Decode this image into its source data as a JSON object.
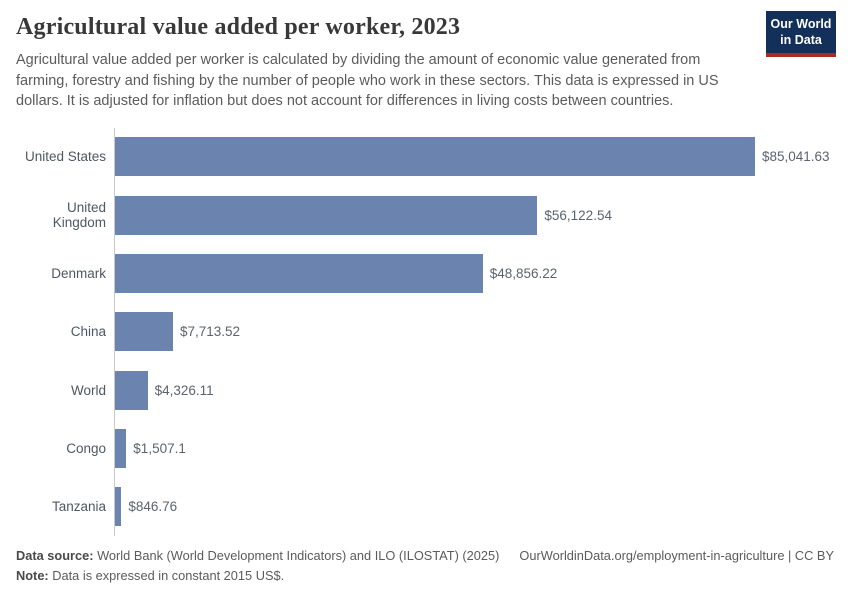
{
  "header": {
    "title": "Agricultural value added per worker, 2023",
    "subtitle": "Agricultural value added per worker is calculated by dividing the amount of economic value generated from farming, forestry and fishing by the number of people who work in these sectors. This data is expressed in US dollars. It is adjusted for inflation but does not account for differences in living costs between countries.",
    "logo": {
      "line1": "Our World",
      "line2": "in Data"
    }
  },
  "chart_data": {
    "type": "bar",
    "orientation": "horizontal",
    "title": "Agricultural value added per worker, 2023",
    "categories": [
      "United States",
      "United Kingdom",
      "Denmark",
      "China",
      "World",
      "Congo",
      "Tanzania"
    ],
    "values": [
      85041.63,
      56122.54,
      48856.22,
      7713.52,
      4326.11,
      1507.1,
      846.76
    ],
    "value_labels": [
      "$85,041.63",
      "$56,122.54",
      "$48,856.22",
      "$7,713.52",
      "$4,326.11",
      "$1,507.1",
      "$846.76"
    ],
    "xlim": [
      0,
      85041.63
    ],
    "bar_color": "#6b84af",
    "axis_line_color": "#c9c9c9",
    "grid": false,
    "legend": "none",
    "unit": "constant 2015 US$"
  },
  "footer": {
    "datasource_label": "Data source:",
    "datasource_text": " World Bank (World Development Indicators) and ILO (ILOSTAT) (2025)",
    "link_text": "OurWorldinData.org/employment-in-agriculture | CC BY",
    "note_label": "Note:",
    "note_text": " Data is expressed in constant 2015 US$."
  }
}
